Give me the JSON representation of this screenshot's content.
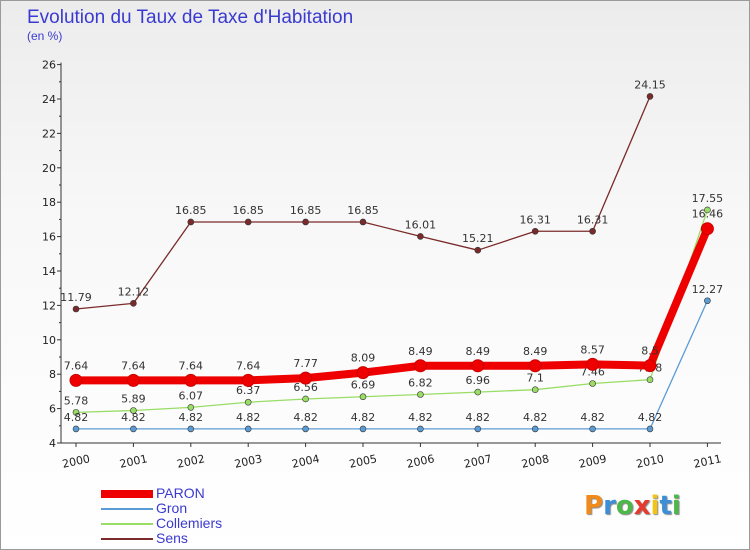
{
  "title": "Evolution du Taux de Taxe d'Habitation",
  "unit_label": "(en %)",
  "brand": "Proxiti",
  "colors": {
    "paron": "#ee0000",
    "gron": "#5b9bd5",
    "collemiers": "#99dd66",
    "sens": "#7a2a2a",
    "axis": "#333333",
    "title": "#3a3ad0"
  },
  "chart_data": {
    "type": "line",
    "title": "Evolution du Taux de Taxe d'Habitation",
    "ylabel": "(en %)",
    "xlabel": "",
    "ylim": [
      4,
      26
    ],
    "yticks": [
      "4",
      "6",
      "8",
      "10",
      "12",
      "14",
      "16",
      "18",
      "20",
      "22",
      "24",
      "26"
    ],
    "categories": [
      "2000",
      "2001",
      "2002",
      "2003",
      "2004",
      "2005",
      "2006",
      "2007",
      "2008",
      "2009",
      "2010",
      "2011"
    ],
    "grid": false,
    "legend_position": "bottom-left",
    "series": [
      {
        "name": "PARON",
        "values": [
          7.64,
          7.64,
          7.64,
          7.64,
          7.77,
          8.09,
          8.49,
          8.49,
          8.49,
          8.57,
          8.5,
          16.46
        ],
        "labels": [
          "7.64",
          "7.64",
          "7.64",
          "7.64",
          "7.77",
          "8.09",
          "8.49",
          "8.49",
          "8.49",
          "8.57",
          "8.5",
          "16.46"
        ]
      },
      {
        "name": "Gron",
        "values": [
          4.82,
          4.82,
          4.82,
          4.82,
          4.82,
          4.82,
          4.82,
          4.82,
          4.82,
          4.82,
          4.82,
          12.27
        ],
        "labels": [
          "4.82",
          "4.82",
          "4.82",
          "4.82",
          "4.82",
          "4.82",
          "4.82",
          "4.82",
          "4.82",
          "4.82",
          "4.82",
          "12.27"
        ]
      },
      {
        "name": "Collemiers",
        "values": [
          5.78,
          5.89,
          6.07,
          6.37,
          6.56,
          6.69,
          6.82,
          6.96,
          7.1,
          7.46,
          7.68,
          17.55
        ],
        "labels": [
          "5.78",
          "5.89",
          "6.07",
          "6.37",
          "6.56",
          "6.69",
          "6.82",
          "6.96",
          "7.1",
          "7.46",
          "7.68",
          "17.55"
        ]
      },
      {
        "name": "Sens",
        "values": [
          11.79,
          12.12,
          16.85,
          16.85,
          16.85,
          16.85,
          16.01,
          15.21,
          16.31,
          16.31,
          24.15,
          null
        ],
        "labels": [
          "11.79",
          "12.12",
          "16.85",
          "16.85",
          "16.85",
          "16.85",
          "16.01",
          "15.21",
          "16.31",
          "16.31",
          "24.15",
          ""
        ]
      }
    ]
  }
}
